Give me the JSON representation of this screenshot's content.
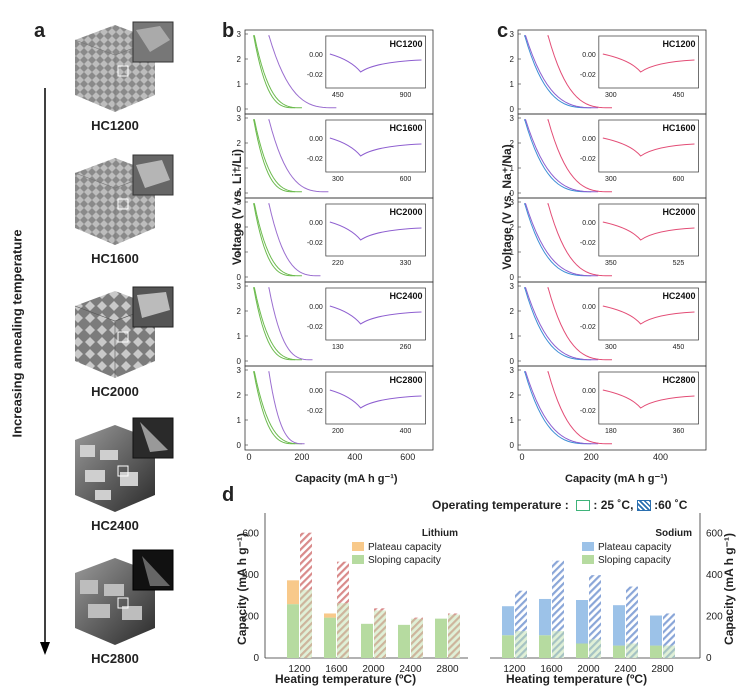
{
  "panel_a": {
    "letter": "a",
    "arrow_label": "Increasing annealing temperature",
    "samples": [
      "HC1200",
      "HC1600",
      "HC2000",
      "HC2400",
      "HC2800"
    ]
  },
  "panel_b": {
    "letter": "b",
    "ylabel": "Voltage (V vs. Li⁺/Li)",
    "xlabel": "Capacity (mA h g⁻¹)",
    "x_ticks": [
      "0",
      "200",
      "400",
      "600"
    ],
    "y_ticks": [
      "0",
      "1",
      "2",
      "3"
    ],
    "insets": [
      {
        "label": "HC1200",
        "x_ticks": [
          "450",
          "900"
        ],
        "y_ticks": [
          "0.00",
          "-0.02"
        ]
      },
      {
        "label": "HC1600",
        "x_ticks": [
          "300",
          "600"
        ],
        "y_ticks": [
          "0.00",
          "-0.02"
        ]
      },
      {
        "label": "HC2000",
        "x_ticks": [
          "220",
          "330"
        ],
        "y_ticks": [
          "0.00",
          "-0.02"
        ]
      },
      {
        "label": "HC2400",
        "x_ticks": [
          "130",
          "260"
        ],
        "y_ticks": [
          "0.00",
          "-0.02"
        ]
      },
      {
        "label": "HC2800",
        "x_ticks": [
          "200",
          "400"
        ],
        "y_ticks": [
          "0.00",
          "-0.02"
        ]
      }
    ]
  },
  "panel_c": {
    "letter": "c",
    "ylabel": "Voltage (V vs. Na⁺/Na)",
    "xlabel": "Capacity (mA h g⁻¹)",
    "x_ticks": [
      "0",
      "200",
      "400"
    ],
    "y_ticks": [
      "0",
      "1",
      "2",
      "3"
    ],
    "insets": [
      {
        "label": "HC1200",
        "x_ticks": [
          "300",
          "450"
        ],
        "y_ticks": [
          "0.00",
          "-0.02"
        ]
      },
      {
        "label": "HC1600",
        "x_ticks": [
          "300",
          "600"
        ],
        "y_ticks": [
          "0.00",
          "-0.02"
        ]
      },
      {
        "label": "HC2000",
        "x_ticks": [
          "350",
          "525"
        ],
        "y_ticks": [
          "0.00",
          "-0.02"
        ]
      },
      {
        "label": "HC2400",
        "x_ticks": [
          "300",
          "450"
        ],
        "y_ticks": [
          "0.00",
          "-0.02"
        ]
      },
      {
        "label": "HC2800",
        "x_ticks": [
          "180",
          "360"
        ],
        "y_ticks": [
          "0.00",
          "-0.02"
        ]
      }
    ]
  },
  "panel_d": {
    "letter": "d",
    "operating_label": "Operating temperature :",
    "legend_25": ": 25 ˚C,",
    "legend_60": ":60 ˚C",
    "ylabel": "Capacity (mA h g⁻¹)",
    "xlabel": "Heating temperature (ºC)",
    "lithium_label": "Lithium",
    "sodium_label": "Sodium",
    "plateau_label": "Plateau capacity",
    "sloping_label": "Sloping capacity",
    "y_ticks": [
      "0",
      "200",
      "400",
      "600"
    ],
    "colors": {
      "li_plateau": "#f8c98a",
      "li_sloping": "#b6dba0",
      "li_60": "#d98a8a",
      "na_plateau": "#9cc2e8",
      "na_sloping": "#b6dba0",
      "na_60": "#8aa6d8"
    }
  },
  "chart_data": [
    {
      "type": "bar",
      "title": "Lithium",
      "categories": [
        "1200",
        "1600",
        "2000",
        "2400",
        "2800"
      ],
      "xlabel": "Heating temperature (ºC)",
      "ylabel": "Capacity (mA h g⁻¹)",
      "ylim": [
        0,
        700
      ],
      "series": [
        {
          "name": "Sloping capacity",
          "values": [
            260,
            195,
            165,
            160,
            190
          ],
          "temp": "25"
        },
        {
          "name": "Plateau capacity",
          "values": [
            115,
            20,
            0,
            0,
            0
          ],
          "temp": "25"
        },
        {
          "name": "Sloping capacity",
          "values": [
            330,
            265,
            230,
            190,
            210
          ],
          "temp": "60"
        },
        {
          "name": "Plateau capacity",
          "values": [
            275,
            200,
            10,
            5,
            5
          ],
          "temp": "60"
        }
      ]
    },
    {
      "type": "bar",
      "title": "Sodium",
      "categories": [
        "1200",
        "1600",
        "2000",
        "2400",
        "2800"
      ],
      "xlabel": "Heating temperature (ºC)",
      "ylabel": "Capacity (mA h g⁻¹)",
      "ylim": [
        0,
        700
      ],
      "series": [
        {
          "name": "Sloping capacity",
          "values": [
            110,
            110,
            70,
            60,
            60
          ],
          "temp": "25"
        },
        {
          "name": "Plateau capacity",
          "values": [
            140,
            175,
            210,
            195,
            145
          ],
          "temp": "25"
        },
        {
          "name": "Sloping capacity",
          "values": [
            130,
            130,
            90,
            70,
            60
          ],
          "temp": "60"
        },
        {
          "name": "Plateau capacity",
          "values": [
            195,
            340,
            310,
            275,
            155
          ],
          "temp": "60"
        }
      ]
    }
  ]
}
